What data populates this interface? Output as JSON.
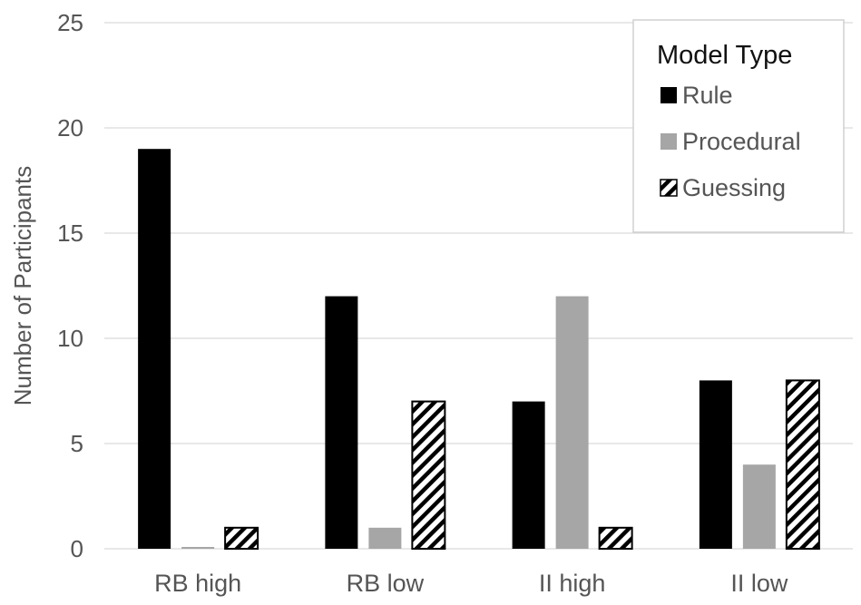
{
  "chart_data": {
    "type": "bar",
    "categories": [
      "RB high",
      "RB low",
      "II high",
      "II low"
    ],
    "series": [
      {
        "name": "Rule",
        "values": [
          19,
          12,
          7,
          8
        ],
        "color": "#000000",
        "pattern": "solid"
      },
      {
        "name": "Procedural",
        "values": [
          0,
          1,
          12,
          4
        ],
        "color": "#a6a6a6",
        "pattern": "solid"
      },
      {
        "name": "Guessing",
        "values": [
          1,
          7,
          1,
          8
        ],
        "color": "#000000",
        "pattern": "diagonal-hatch"
      }
    ],
    "ylabel": "Number of Participants",
    "xlabel": "",
    "ylim": [
      0,
      25
    ],
    "yticks": [
      0,
      5,
      10,
      15,
      20,
      25
    ],
    "grid": true,
    "legend": {
      "title": "Model Type",
      "position": "top-right"
    }
  }
}
